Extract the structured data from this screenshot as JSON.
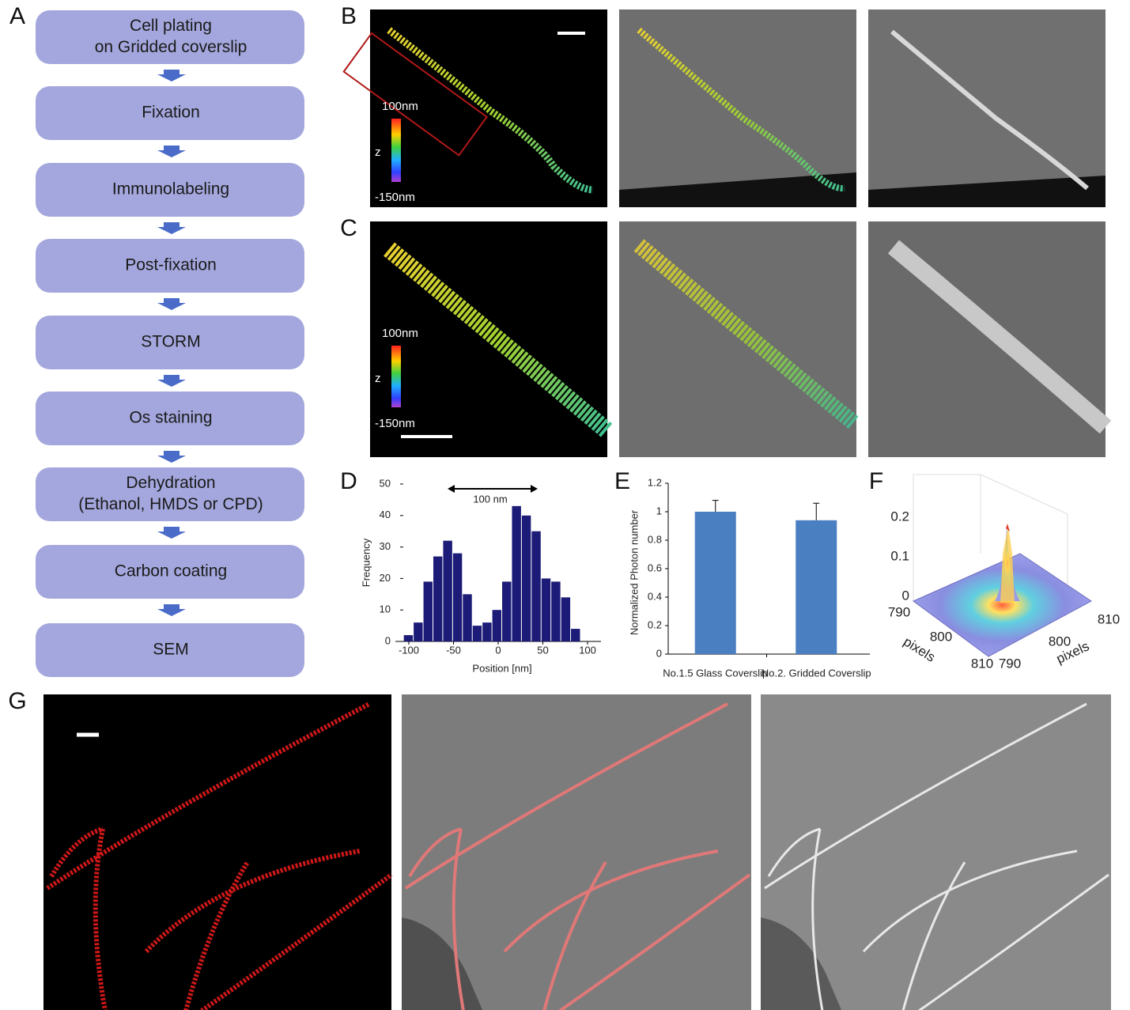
{
  "panel_labels": [
    "A",
    "B",
    "C",
    "D",
    "E",
    "F",
    "G"
  ],
  "flowchart": {
    "steps": [
      [
        "Cell plating",
        "on Gridded coverslip"
      ],
      [
        "Fixation"
      ],
      [
        "Immunolabeling"
      ],
      [
        "Post-fixation"
      ],
      [
        "STORM"
      ],
      [
        "Os staining"
      ],
      [
        "Dehydration",
        "(Ethanol, HMDS or CPD)"
      ],
      [
        "Carbon coating"
      ],
      [
        "SEM"
      ]
    ]
  },
  "images": {
    "B": {
      "scale_top": "100nm",
      "axis": "z",
      "scale_bottom": "-150nm"
    },
    "C": {
      "scale_top": "100nm",
      "axis": "z",
      "scale_bottom": "-150nm"
    }
  },
  "chart_data": [
    {
      "type": "histogram",
      "xlabel": "Position [nm]",
      "ylabel": "Frequency",
      "annotation": "100 nm",
      "bins": [
        -106,
        -95,
        -84,
        -73,
        -62,
        -51,
        -40,
        -29,
        -18,
        -7,
        4,
        15,
        26,
        37,
        48,
        59,
        70,
        81,
        92
      ],
      "values": [
        2,
        6,
        19,
        27,
        32,
        28,
        15,
        5,
        6,
        10,
        19,
        43,
        40,
        35,
        20,
        19,
        14,
        4
      ],
      "color": "#1c1c78",
      "xlim": [
        -115,
        115
      ],
      "ylim": [
        0,
        50
      ],
      "xticks": [
        -100,
        -50,
        0,
        50,
        100
      ],
      "yticks": [
        0,
        10,
        20,
        30,
        40,
        50
      ]
    },
    {
      "type": "bar",
      "ylabel": "Normalized Photon number",
      "categories": [
        "No.1.5 Glass Coverslip",
        "No.2. Gridded Coverslip"
      ],
      "values": [
        1,
        0.94
      ],
      "errors": [
        0.08,
        0.12
      ],
      "color": "#4a7fc1",
      "ylim": [
        0,
        1.2
      ],
      "yticks": [
        0,
        0.2,
        0.4,
        0.6,
        0.8,
        1,
        1.2
      ]
    }
  ],
  "surface": {
    "zticks": [
      0,
      0.1,
      0.2
    ],
    "xticks": [
      790,
      800,
      810
    ],
    "yticks": [
      790,
      800,
      810
    ],
    "xlabel": "pixels",
    "ylabel": "pixels"
  }
}
